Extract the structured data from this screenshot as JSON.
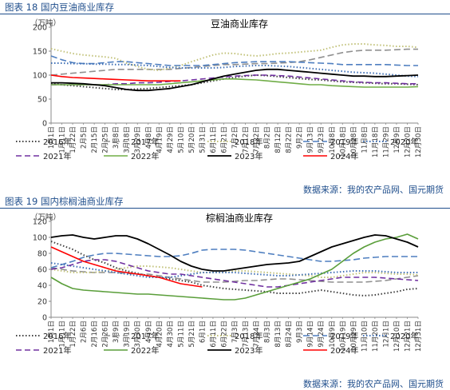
{
  "figures": [
    {
      "caption": "图表 18 国内豆油商业库存",
      "source": "数据来源：我的农产品网、国元期货"
    },
    {
      "caption": "图表 19 国内棕榈油商业库存",
      "source": "数据来源：我的农产品网、国元期货"
    }
  ],
  "colors": {
    "caption": "#1f4e8c",
    "axis": "#888888"
  },
  "chart_data": [
    {
      "type": "line",
      "title": "豆油商业库存",
      "ylabel": "（万吨）",
      "ylim": [
        0,
        200
      ],
      "yticks": [
        0,
        50,
        100,
        150,
        200
      ],
      "categories": [
        "1月1日",
        "1月11日",
        "1月22日",
        "2月5日",
        "2月15日",
        "2月25日",
        "3月8日",
        "3月18日",
        "3月29日",
        "4月8日",
        "4月19日",
        "4月29日",
        "5月10日",
        "5月20日",
        "5月31日",
        "6月11日",
        "6月21日",
        "7月2日",
        "7月12日",
        "7月22日",
        "8月2日",
        "8月12日",
        "8月22日",
        "9月2日",
        "9月13日",
        "9月23日",
        "10月8日",
        "10月18日",
        "10月28日",
        "11月8日",
        "11月18日",
        "11月29日",
        "12月9日",
        "12月20日",
        "12月30日"
      ],
      "series": [
        {
          "name": "2016年",
          "color": "#404040",
          "dash": "1.5,2.5",
          "width": 2,
          "values": [
            82,
            80,
            78,
            76,
            74,
            72,
            70,
            70,
            71,
            72,
            74,
            76,
            78,
            80,
            84,
            88,
            92,
            95,
            98,
            100,
            99,
            97,
            95,
            93,
            91,
            90,
            88,
            86,
            85,
            84,
            83,
            82,
            82,
            81,
            80
          ]
        },
        {
          "name": "2017年",
          "color": "#909090",
          "dash": "8,4",
          "width": 1.6,
          "values": [
            100,
            102,
            104,
            106,
            108,
            110,
            112,
            112,
            112,
            112,
            112,
            112,
            114,
            116,
            118,
            120,
            122,
            122,
            123,
            124,
            124,
            125,
            126,
            128,
            132,
            137,
            142,
            147,
            150,
            152,
            152,
            152,
            153,
            154,
            154
          ]
        },
        {
          "name": "2018年",
          "color": "#c2c27a",
          "dash": "1.5,2.5",
          "width": 2,
          "values": [
            155,
            150,
            145,
            142,
            140,
            138,
            135,
            125,
            118,
            112,
            110,
            115,
            120,
            128,
            135,
            142,
            146,
            145,
            142,
            140,
            142,
            145,
            146,
            148,
            150,
            152,
            158,
            163,
            165,
            165,
            163,
            162,
            160,
            160,
            158
          ]
        },
        {
          "name": "2019年",
          "color": "#4f7fc0",
          "dash": "8,4",
          "width": 1.6,
          "values": [
            140,
            132,
            126,
            124,
            124,
            126,
            128,
            128,
            126,
            124,
            122,
            120,
            120,
            120,
            120,
            122,
            124,
            126,
            127,
            128,
            128,
            128,
            128,
            127,
            126,
            125,
            124,
            122,
            122,
            122,
            122,
            122,
            121,
            120,
            120
          ]
        },
        {
          "name": "2020年",
          "color": "#3f6fb5",
          "dash": "1.5,2.5",
          "width": 2,
          "values": [
            125,
            125,
            124,
            124,
            123,
            123,
            122,
            122,
            121,
            120,
            118,
            116,
            115,
            115,
            115,
            115,
            116,
            118,
            119,
            120,
            120,
            119,
            118,
            116,
            114,
            112,
            110,
            108,
            106,
            105,
            104,
            102,
            100,
            98,
            97
          ]
        },
        {
          "name": "2021年",
          "color": "#7030a0",
          "dash": "7,4",
          "width": 1.6,
          "values": [
            80,
            80,
            80,
            80,
            80,
            80,
            82,
            82,
            84,
            84,
            85,
            87,
            88,
            90,
            92,
            94,
            96,
            98,
            99,
            100,
            100,
            99,
            98,
            96,
            94,
            92,
            90,
            88,
            86,
            85,
            84,
            84,
            83,
            82,
            82
          ]
        },
        {
          "name": "2022年",
          "color": "#70ad47",
          "dash": "",
          "width": 1.6,
          "values": [
            80,
            80,
            80,
            80,
            80,
            80,
            80,
            80,
            80,
            80,
            80,
            82,
            84,
            86,
            88,
            90,
            92,
            92,
            91,
            90,
            88,
            86,
            84,
            82,
            80,
            80,
            78,
            77,
            76,
            75,
            75,
            75,
            75,
            75,
            76
          ]
        },
        {
          "name": "2023年",
          "color": "#000000",
          "dash": "",
          "width": 1.8,
          "values": [
            84,
            84,
            83,
            82,
            80,
            78,
            74,
            70,
            68,
            68,
            70,
            72,
            76,
            80,
            86,
            92,
            98,
            102,
            106,
            110,
            112,
            112,
            110,
            108,
            106,
            104,
            102,
            100,
            98,
            98,
            97,
            97,
            98,
            99,
            100
          ]
        },
        {
          "name": "2024年",
          "color": "#ff0000",
          "dash": "",
          "width": 1.6,
          "values": [
            100,
            97,
            95,
            94,
            93,
            92,
            91,
            90,
            89,
            88,
            88,
            88,
            88,
            null,
            null,
            null,
            null,
            null,
            null,
            null,
            null,
            null,
            null,
            null,
            null,
            null,
            null,
            null,
            null,
            null,
            null,
            null,
            null,
            null,
            null
          ]
        }
      ],
      "legend_position": "bottom"
    },
    {
      "type": "line",
      "title": "棕榈油商业库存",
      "ylabel": "（万吨）",
      "ylim": [
        0,
        120
      ],
      "yticks": [
        0,
        20,
        40,
        60,
        80,
        100,
        120
      ],
      "categories": [
        "1月1日",
        "1月11日",
        "1月22日",
        "2月6日",
        "2月16日",
        "2月26日",
        "3月9日",
        "3月19日",
        "3月30日",
        "4月9日",
        "4月20日",
        "4月30日",
        "5月11日",
        "5月21日",
        "6月1日",
        "6月11日",
        "6月22日",
        "7月3日",
        "7月13日",
        "7月24日",
        "8月3日",
        "8月13日",
        "8月24日",
        "9月3日",
        "9月14日",
        "9月24日",
        "10月9日",
        "10月19日",
        "10月29日",
        "11月10日",
        "11月20日",
        "12月1日",
        "12月10日",
        "12月21日",
        "12月31日"
      ],
      "series": [
        {
          "name": "2016年",
          "color": "#404040",
          "dash": "1.5,2.5",
          "width": 2,
          "values": [
            95,
            90,
            85,
            78,
            72,
            68,
            62,
            58,
            55,
            52,
            50,
            48,
            46,
            44,
            40,
            38,
            36,
            35,
            34,
            33,
            32,
            30,
            30,
            30,
            32,
            34,
            32,
            30,
            28,
            27,
            28,
            30,
            32,
            35,
            36
          ]
        },
        {
          "name": "2017年",
          "color": "#909090",
          "dash": "8,4",
          "width": 1.6,
          "values": [
            62,
            60,
            58,
            57,
            56,
            56,
            56,
            55,
            54,
            54,
            52,
            50,
            48,
            46,
            44,
            44,
            44,
            45,
            46,
            46,
            47,
            48,
            48,
            47,
            46,
            45,
            44,
            44,
            44,
            44,
            45,
            46,
            48,
            50,
            52
          ]
        },
        {
          "name": "2018年",
          "color": "#c2c27a",
          "dash": "1.5,2.5",
          "width": 2,
          "values": [
            60,
            58,
            56,
            56,
            56,
            58,
            60,
            62,
            64,
            64,
            63,
            62,
            60,
            58,
            56,
            56,
            56,
            58,
            58,
            57,
            56,
            55,
            54,
            53,
            52,
            50,
            50,
            52,
            54,
            56,
            56,
            55,
            54,
            54,
            53
          ]
        },
        {
          "name": "2019年",
          "color": "#4f7fc0",
          "dash": "8,4",
          "width": 1.6,
          "values": [
            62,
            66,
            70,
            75,
            78,
            80,
            80,
            79,
            78,
            77,
            76,
            76,
            77,
            80,
            84,
            85,
            85,
            85,
            84,
            82,
            80,
            78,
            76,
            74,
            72,
            70,
            70,
            71,
            72,
            74,
            75,
            76,
            76,
            76,
            76
          ]
        },
        {
          "name": "2020年",
          "color": "#3f6fb5",
          "dash": "1.5,2.5",
          "width": 2,
          "values": [
            68,
            66,
            64,
            62,
            60,
            58,
            56,
            54,
            52,
            50,
            50,
            50,
            52,
            54,
            56,
            56,
            56,
            56,
            55,
            54,
            53,
            52,
            52,
            53,
            54,
            55,
            56,
            57,
            58,
            58,
            58,
            57,
            56,
            56,
            56
          ]
        },
        {
          "name": "2021年",
          "color": "#7030a0",
          "dash": "7,4",
          "width": 1.6,
          "values": [
            60,
            62,
            66,
            70,
            72,
            72,
            70,
            66,
            62,
            58,
            56,
            54,
            54,
            52,
            50,
            48,
            46,
            44,
            42,
            40,
            38,
            38,
            40,
            42,
            44,
            46,
            48,
            50,
            50,
            50,
            50,
            49,
            48,
            47,
            46
          ]
        },
        {
          "name": "2022年",
          "color": "#5a9e3a",
          "dash": "",
          "width": 1.6,
          "values": [
            50,
            42,
            36,
            34,
            33,
            32,
            31,
            30,
            29,
            29,
            28,
            27,
            26,
            25,
            24,
            23,
            22,
            22,
            24,
            28,
            32,
            36,
            40,
            44,
            48,
            54,
            60,
            70,
            80,
            88,
            94,
            98,
            100,
            104,
            98
          ]
        },
        {
          "name": "2023年",
          "color": "#000000",
          "dash": "",
          "width": 1.8,
          "values": [
            100,
            102,
            103,
            100,
            98,
            100,
            102,
            102,
            98,
            92,
            85,
            78,
            70,
            64,
            60,
            58,
            58,
            60,
            62,
            64,
            66,
            67,
            68,
            70,
            76,
            82,
            88,
            92,
            96,
            100,
            103,
            102,
            98,
            94,
            88
          ]
        },
        {
          "name": "2024年",
          "color": "#ff0000",
          "dash": "",
          "width": 1.6,
          "values": [
            88,
            82,
            76,
            70,
            66,
            62,
            58,
            56,
            54,
            52,
            50,
            46,
            42,
            40,
            38,
            null,
            null,
            null,
            null,
            null,
            null,
            null,
            null,
            null,
            null,
            null,
            null,
            null,
            null,
            null,
            null,
            null,
            null,
            null,
            null
          ]
        }
      ],
      "legend_position": "bottom"
    }
  ]
}
